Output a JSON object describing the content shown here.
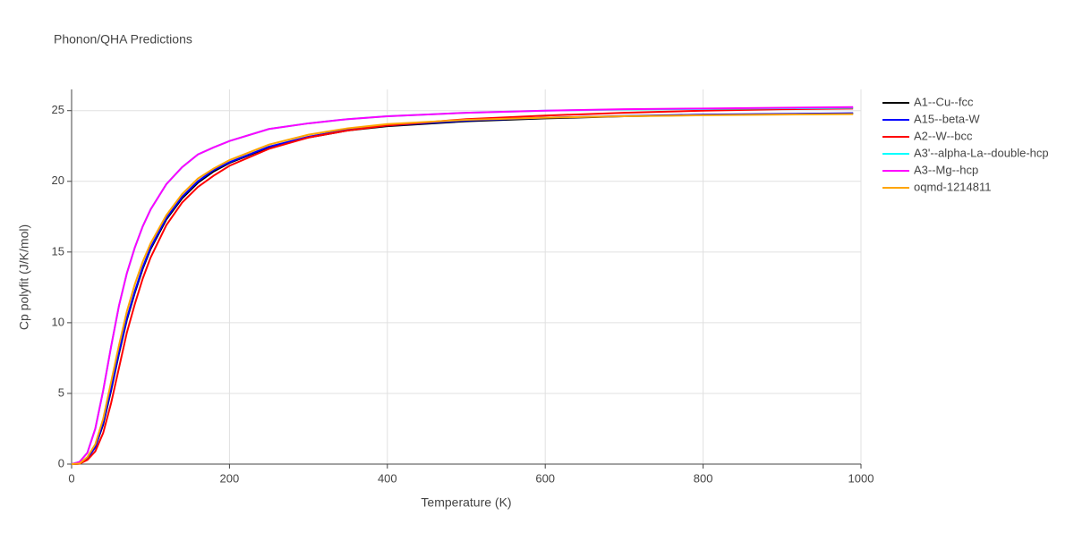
{
  "chart_data": {
    "type": "line",
    "title": "Phonon/QHA Predictions",
    "x_label": "Temperature (K)",
    "y_label": "Cp polyfit (J/K/mol)",
    "x": [
      0,
      10,
      20,
      30,
      40,
      50,
      60,
      70,
      80,
      90,
      100,
      120,
      140,
      160,
      180,
      200,
      250,
      300,
      350,
      400,
      500,
      600,
      700,
      800,
      900,
      990
    ],
    "xlim": [
      0,
      1000
    ],
    "xticks": [
      0,
      200,
      400,
      600,
      800,
      1000
    ],
    "ylim": [
      0,
      26.5
    ],
    "yticks": [
      0,
      5,
      10,
      15,
      20,
      25
    ],
    "grid": true,
    "legend": "right",
    "series": [
      {
        "name": "A1--Cu--fcc",
        "color": "#000000",
        "values": [
          0,
          0.03,
          0.4,
          1.2,
          2.8,
          5.2,
          7.8,
          10.2,
          12.1,
          13.8,
          15.2,
          17.3,
          18.8,
          19.9,
          20.7,
          21.3,
          22.4,
          23.1,
          23.6,
          23.9,
          24.25,
          24.45,
          24.6,
          24.7,
          24.75,
          24.8
        ]
      },
      {
        "name": "A15--beta-W",
        "color": "#0000ff",
        "values": [
          0,
          0.03,
          0.4,
          1.2,
          2.9,
          5.3,
          7.9,
          10.3,
          12.2,
          13.9,
          15.3,
          17.4,
          18.9,
          20.0,
          20.8,
          21.35,
          22.45,
          23.15,
          23.65,
          23.95,
          24.3,
          24.5,
          24.62,
          24.72,
          24.77,
          24.82
        ]
      },
      {
        "name": "A2--W--bcc",
        "color": "#ff0000",
        "values": [
          0,
          0.02,
          0.3,
          0.9,
          2.2,
          4.3,
          6.8,
          9.3,
          11.3,
          13.1,
          14.6,
          16.9,
          18.5,
          19.6,
          20.4,
          21.1,
          22.3,
          23.1,
          23.6,
          23.95,
          24.4,
          24.65,
          24.85,
          25.0,
          25.1,
          25.15
        ]
      },
      {
        "name": "A3'--alpha-La--double-hcp",
        "color": "#00ffff",
        "values": [
          0,
          0.15,
          0.8,
          2.5,
          5.2,
          8.3,
          11.2,
          13.5,
          15.3,
          16.8,
          18.0,
          19.8,
          21.0,
          21.9,
          22.4,
          22.85,
          23.7,
          24.1,
          24.4,
          24.6,
          24.85,
          25.0,
          25.08,
          25.12,
          25.17,
          25.2
        ]
      },
      {
        "name": "A3--Mg--hcp",
        "color": "#ff00ff",
        "values": [
          0,
          0.15,
          0.8,
          2.5,
          5.2,
          8.3,
          11.2,
          13.5,
          15.3,
          16.8,
          18.0,
          19.8,
          21.0,
          21.9,
          22.4,
          22.85,
          23.7,
          24.1,
          24.4,
          24.6,
          24.85,
          25.0,
          25.1,
          25.15,
          25.2,
          25.25
        ]
      },
      {
        "name": "oqmd-1214811",
        "color": "#ffa500",
        "values": [
          0,
          0.04,
          0.5,
          1.4,
          3.2,
          5.8,
          8.4,
          10.8,
          12.7,
          14.3,
          15.6,
          17.6,
          19.1,
          20.2,
          20.9,
          21.5,
          22.6,
          23.3,
          23.75,
          24.05,
          24.35,
          24.5,
          24.6,
          24.67,
          24.72,
          24.75
        ]
      }
    ]
  }
}
